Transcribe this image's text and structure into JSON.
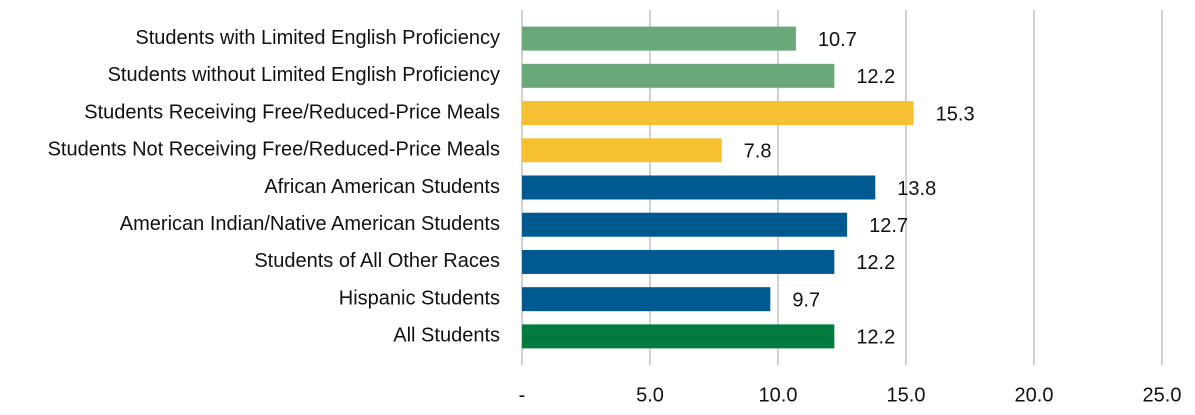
{
  "chart_data": {
    "type": "bar",
    "orientation": "horizontal",
    "categories": [
      "Students with Limited English Proficiency",
      "Students without Limited English Proficiency",
      "Students Receiving Free/Reduced-Price Meals",
      "Students Not Receiving Free/Reduced-Price Meals",
      "African American Students",
      "American Indian/Native American Students",
      "Students of All Other Races",
      "Hispanic Students",
      "All Students"
    ],
    "values": [
      10.7,
      12.2,
      15.3,
      7.8,
      13.8,
      12.7,
      12.2,
      9.7,
      12.2
    ],
    "colors": [
      "#69a878",
      "#69a878",
      "#f5c133",
      "#f5c133",
      "#005a8f",
      "#005a8f",
      "#005a8f",
      "#005a8f",
      "#007a3d"
    ],
    "xlim": [
      0,
      25
    ],
    "xticks": [
      {
        "value": 0,
        "label": "-"
      },
      {
        "value": 5,
        "label": "5.0"
      },
      {
        "value": 10,
        "label": "10.0"
      },
      {
        "value": 15,
        "label": "15.0"
      },
      {
        "value": 20,
        "label": "20.0"
      },
      {
        "value": 25,
        "label": "25.0"
      }
    ],
    "grid": true
  }
}
